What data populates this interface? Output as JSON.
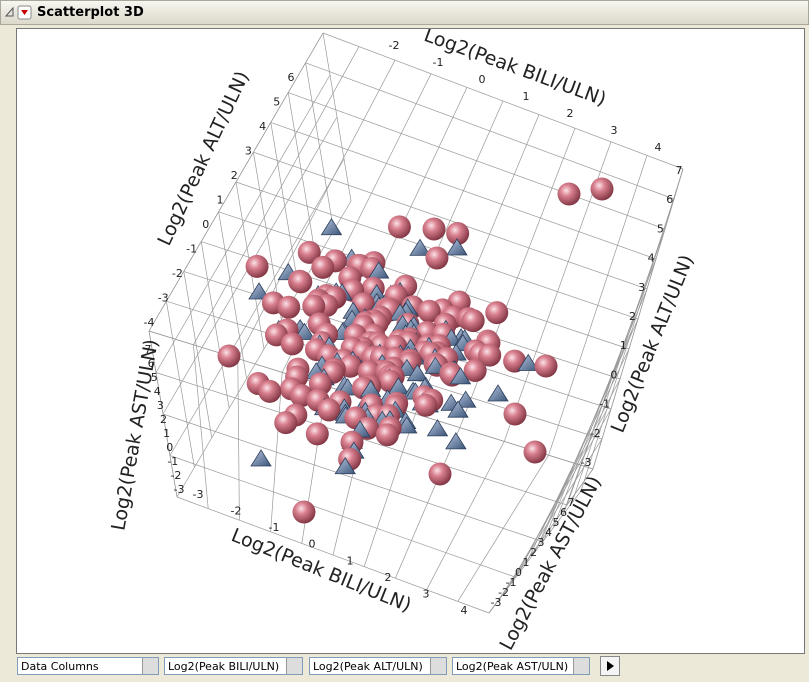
{
  "window": {
    "title": "Scatterplot 3D"
  },
  "axes": [
    {
      "label": "Log2(Peak BILI/ULN)",
      "ticks": [
        -2,
        -1,
        0,
        1,
        2,
        3,
        4
      ]
    },
    {
      "label": "Log2(Peak ALT/ULN)",
      "ticks": [
        6,
        5,
        4,
        3,
        2,
        1,
        0,
        -1,
        -2,
        -3,
        -4
      ]
    },
    {
      "label": "Log2(Peak ALT/ULN)",
      "ticks": [
        7,
        6,
        5,
        4,
        3,
        2,
        1,
        0,
        -1,
        -2,
        -3
      ]
    },
    {
      "label": "Log2(Peak AST/ULN)",
      "ticks": [
        7,
        6,
        5,
        4,
        3,
        2,
        1,
        0,
        -1,
        -2,
        -3
      ]
    },
    {
      "label": "Log2(Peak BILI/ULN)",
      "ticks": [
        -3,
        -2,
        -1,
        0,
        1,
        2,
        3,
        4
      ]
    },
    {
      "label": "Log2(Peak AST/ULN)",
      "ticks": [
        7,
        6,
        5,
        4,
        3,
        2,
        1,
        0,
        -1,
        -2,
        -3
      ]
    }
  ],
  "controls": [
    "Data Columns",
    "Log2(Peak BILI/ULN)",
    "Log2(Peak ALT/ULN)",
    "Log2(Peak AST/ULN)"
  ]
}
